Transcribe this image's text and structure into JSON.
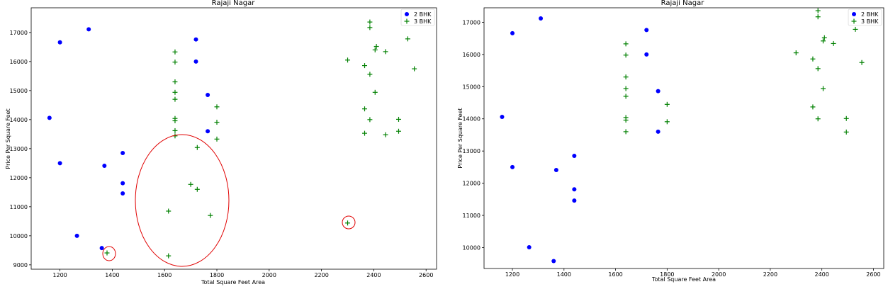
{
  "chart_data": [
    {
      "type": "scatter",
      "title": "Rajaji Nagar",
      "xlabel": "Total Square Feet Area",
      "ylabel": "Price Per Square Feet",
      "xlim": [
        1090,
        2640
      ],
      "ylim": [
        8850,
        17850
      ],
      "x_ticks": [
        1200,
        1400,
        1600,
        1800,
        2000,
        2200,
        2400,
        2600
      ],
      "y_ticks": [
        9000,
        10000,
        11000,
        12000,
        13000,
        14000,
        15000,
        16000,
        17000
      ],
      "legend_position": "top-right",
      "grid": false,
      "series": [
        {
          "name": "2 BHK",
          "marker": "circle",
          "color": "#0000ff",
          "points": [
            [
              1160,
              14060
            ],
            [
              1200,
              16660
            ],
            [
              1200,
              12500
            ],
            [
              1265,
              10000
            ],
            [
              1310,
              17110
            ],
            [
              1360,
              9580
            ],
            [
              1370,
              12410
            ],
            [
              1440,
              12850
            ],
            [
              1440,
              11810
            ],
            [
              1440,
              11460
            ],
            [
              1720,
              16760
            ],
            [
              1720,
              16000
            ],
            [
              1765,
              14850
            ],
            [
              1765,
              13600
            ]
          ]
        },
        {
          "name": "3 BHK",
          "marker": "plus",
          "color": "#008000",
          "points": [
            [
              1380,
              9410
            ],
            [
              1615,
              10850
            ],
            [
              1615,
              9310
            ],
            [
              1640,
              16330
            ],
            [
              1640,
              15980
            ],
            [
              1640,
              15300
            ],
            [
              1640,
              14940
            ],
            [
              1640,
              14700
            ],
            [
              1640,
              14040
            ],
            [
              1640,
              13960
            ],
            [
              1640,
              13620
            ],
            [
              1640,
              13440
            ],
            [
              1700,
              11770
            ],
            [
              1725,
              13040
            ],
            [
              1725,
              11600
            ],
            [
              1775,
              10700
            ],
            [
              1800,
              14440
            ],
            [
              1800,
              13910
            ],
            [
              1800,
              13330
            ],
            [
              2300,
              16050
            ],
            [
              2300,
              10440
            ],
            [
              2365,
              15860
            ],
            [
              2365,
              14370
            ],
            [
              2365,
              13530
            ],
            [
              2385,
              17360
            ],
            [
              2385,
              17170
            ],
            [
              2385,
              15560
            ],
            [
              2385,
              14000
            ],
            [
              2405,
              16400
            ],
            [
              2405,
              14940
            ],
            [
              2410,
              16520
            ],
            [
              2445,
              16340
            ],
            [
              2445,
              13480
            ],
            [
              2495,
              14010
            ],
            [
              2495,
              13600
            ],
            [
              2530,
              16780
            ],
            [
              2555,
              15750
            ]
          ]
        }
      ]
    },
    {
      "type": "scatter",
      "title": "Rajaji Nagar",
      "xlabel": "Total Square Feet Area",
      "ylabel": "Price Per Square Feet",
      "xlim": [
        1090,
        2640
      ],
      "ylim": [
        9350,
        17450
      ],
      "x_ticks": [
        1200,
        1400,
        1600,
        1800,
        2000,
        2200,
        2400,
        2600
      ],
      "y_ticks": [
        10000,
        11000,
        12000,
        13000,
        14000,
        15000,
        16000,
        17000
      ],
      "legend_position": "top-right",
      "grid": false,
      "series": [
        {
          "name": "2 BHK",
          "marker": "circle",
          "color": "#0000ff",
          "points": [
            [
              1160,
              14060
            ],
            [
              1200,
              16660
            ],
            [
              1200,
              12500
            ],
            [
              1265,
              10010
            ],
            [
              1310,
              17120
            ],
            [
              1360,
              9580
            ],
            [
              1370,
              12410
            ],
            [
              1440,
              12850
            ],
            [
              1440,
              11810
            ],
            [
              1440,
              11460
            ],
            [
              1720,
              16760
            ],
            [
              1720,
              16000
            ],
            [
              1765,
              14860
            ],
            [
              1765,
              13600
            ]
          ]
        },
        {
          "name": "3 BHK",
          "marker": "plus",
          "color": "#008000",
          "points": [
            [
              1640,
              16330
            ],
            [
              1640,
              15980
            ],
            [
              1640,
              15300
            ],
            [
              1640,
              14940
            ],
            [
              1640,
              14700
            ],
            [
              1640,
              14040
            ],
            [
              1640,
              13960
            ],
            [
              1640,
              13600
            ],
            [
              1800,
              14450
            ],
            [
              1800,
              13910
            ],
            [
              2300,
              16050
            ],
            [
              2365,
              15860
            ],
            [
              2365,
              14370
            ],
            [
              2385,
              17360
            ],
            [
              2385,
              17170
            ],
            [
              2385,
              15560
            ],
            [
              2385,
              14000
            ],
            [
              2405,
              16420
            ],
            [
              2405,
              14940
            ],
            [
              2410,
              16520
            ],
            [
              2445,
              16340
            ],
            [
              2495,
              14010
            ],
            [
              2495,
              13590
            ],
            [
              2530,
              16780
            ],
            [
              2555,
              15750
            ]
          ]
        }
      ]
    }
  ]
}
